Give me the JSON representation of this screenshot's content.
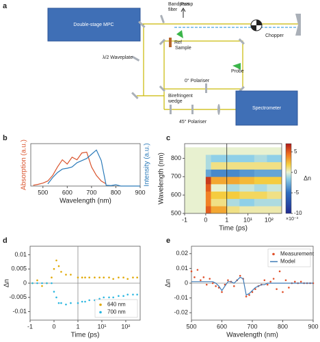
{
  "figure": {
    "panel_labels": [
      "a",
      "b",
      "c",
      "d",
      "e"
    ]
  },
  "diagram": {
    "mpc": "Double-stage MPC",
    "bandpass": [
      "Bandpass",
      "filter"
    ],
    "pump": "Pump",
    "chopper": "Chopper",
    "ref": "Ref",
    "sample": "Sample",
    "waveplate": "λ/2 Waveplate",
    "polariser0": "0° Polariser",
    "probe": "Probe",
    "wedge": [
      "Birefringent",
      "wedge"
    ],
    "polariser45": "45° Polariser",
    "spectrometer": "Spectrometer"
  },
  "chart_data": [
    {
      "type": "line",
      "xlabel": "Wavelength (nm)",
      "ylabel": "Absorption (a.u.)",
      "y2label": "Intensity (a.u.)",
      "x": [
        460,
        480,
        500,
        520,
        540,
        560,
        580,
        600,
        620,
        640,
        660,
        680,
        700,
        720,
        740,
        760,
        780,
        800,
        820,
        840,
        860,
        880,
        900
      ],
      "xlim": [
        450,
        900
      ],
      "xticks": [
        500,
        600,
        700,
        800,
        900
      ],
      "ylim": [
        0,
        1
      ],
      "y2lim": [
        0,
        1
      ],
      "series": [
        {
          "name": "Absorption",
          "color": "#d9532c",
          "values": [
            0.02,
            0.04,
            0.07,
            0.12,
            0.25,
            0.45,
            0.62,
            0.52,
            0.68,
            0.62,
            0.78,
            0.8,
            0.45,
            0.25,
            0.12,
            0.05,
            null,
            null,
            null,
            null,
            null,
            null,
            null
          ]
        },
        {
          "name": "Intensity",
          "color": "#2a7ab9",
          "axis": "y2",
          "values": [
            null,
            null,
            null,
            0.05,
            0.2,
            0.32,
            0.4,
            0.42,
            0.45,
            0.55,
            0.6,
            0.65,
            0.75,
            0.85,
            0.6,
            0.02,
            0.01,
            0.03,
            0,
            0,
            0,
            0,
            0
          ]
        }
      ]
    },
    {
      "type": "heatmap",
      "xlabel": "Time (ps)",
      "ylabel": "Wavelength (nm)",
      "xscale": "symlog",
      "xlim": [
        -1,
        400
      ],
      "xticks": [
        -1,
        0,
        1,
        {
          "value": 10,
          "label": "10¹"
        },
        {
          "value": 100,
          "label": "10²"
        }
      ],
      "ylim": [
        500,
        880
      ],
      "yticks": [
        500,
        600,
        700,
        800
      ],
      "x_edges": [
        -1,
        -0.5,
        0,
        0.25,
        1,
        4,
        20,
        80,
        400
      ],
      "y_edges": [
        500,
        540,
        580,
        620,
        660,
        700,
        740,
        780,
        820,
        860
      ],
      "z": [
        [
          0,
          0,
          5,
          3,
          1,
          0.5,
          0.5,
          0.5
        ],
        [
          0,
          0,
          4,
          1,
          -1,
          -1.5,
          -1,
          -1
        ],
        [
          0,
          0,
          4,
          2,
          2,
          1.5,
          1.5,
          1
        ],
        [
          0,
          0,
          5,
          0,
          -1,
          -0.5,
          -1,
          -0.5
        ],
        [
          0,
          0,
          6,
          3,
          3,
          2.5,
          2,
          2
        ],
        [
          0,
          0,
          -3,
          -4,
          -4,
          -3.5,
          -3,
          -3
        ],
        [
          0,
          0,
          -1,
          1,
          1,
          1,
          1,
          1
        ],
        [
          0,
          0,
          -1,
          -1.5,
          -1.5,
          -1.5,
          -1,
          -1.5
        ],
        [
          0,
          0,
          0,
          0,
          0,
          0,
          0,
          0
        ]
      ],
      "zlim": [
        -10,
        7
      ],
      "zticks": [
        5,
        0,
        -5,
        -10
      ],
      "colormap": "jet",
      "colorbar_label": "Δn",
      "colorbar_scale_label": "×10⁻³",
      "vline": 1
    },
    {
      "type": "scatter",
      "xlabel": "Time (ps)",
      "ylabel": "Δn",
      "xscale": "symlog",
      "xlim": [
        -1,
        400
      ],
      "xticks": [
        -1,
        0,
        1,
        {
          "value": 10,
          "label": "10¹"
        },
        {
          "value": 100,
          "label": "10²"
        }
      ],
      "ylim": [
        -0.013,
        0.013
      ],
      "yticks": [
        0.01,
        0.005,
        0,
        -0.005,
        -0.01
      ],
      "vline": 1,
      "hline": 0,
      "legend": "bottom-right",
      "x": [
        -0.9,
        -0.7,
        -0.5,
        -0.3,
        -0.1,
        0,
        0.1,
        0.2,
        0.3,
        0.5,
        0.7,
        1,
        1.5,
        2,
        3,
        5,
        8,
        12,
        20,
        30,
        50,
        80,
        120,
        200,
        300
      ],
      "series": [
        {
          "name": "640 nm",
          "color": "#e0a800",
          "type": "scatter",
          "values": [
            0,
            0.001,
            -0.001,
            0,
            0.002,
            0.005,
            0.008,
            0.006,
            0.004,
            0.003,
            0.003,
            0.002,
            0.002,
            0.002,
            0.002,
            0.002,
            0.002,
            0.002,
            0.002,
            0.0015,
            0.002,
            0.002,
            0.0015,
            0.002,
            0.002
          ]
        },
        {
          "name": "700 nm",
          "color": "#29b6e0",
          "type": "scatter",
          "values": [
            0,
            0,
            0,
            0,
            0,
            -0.003,
            -0.005,
            -0.007,
            -0.007,
            -0.0075,
            -0.007,
            -0.007,
            -0.0065,
            -0.0065,
            -0.006,
            -0.006,
            -0.0055,
            -0.005,
            -0.005,
            -0.005,
            -0.0045,
            -0.0045,
            -0.004,
            -0.004,
            -0.004
          ]
        }
      ]
    },
    {
      "type": "line",
      "xlabel": "Wavelength (nm)",
      "ylabel": "Δn",
      "xlim": [
        500,
        900
      ],
      "xticks": [
        500,
        600,
        700,
        800,
        900
      ],
      "ylim": [
        -0.025,
        0.025
      ],
      "yticks": [
        0.02,
        0.01,
        0,
        -0.01,
        -0.02
      ],
      "hline": 0,
      "legend": "top-right",
      "x": [
        500,
        510,
        520,
        530,
        540,
        550,
        560,
        570,
        580,
        590,
        600,
        610,
        620,
        630,
        640,
        650,
        660,
        670,
        680,
        690,
        700,
        710,
        720,
        730,
        740,
        750,
        760,
        770,
        780,
        790,
        800,
        810,
        820,
        830,
        840,
        850,
        860,
        870,
        880,
        890,
        900
      ],
      "series": [
        {
          "name": "Measurement",
          "color": "#e0502a",
          "type": "scatter",
          "values": [
            0.008,
            0.004,
            0.009,
            0.002,
            0.004,
            -0.001,
            0.003,
            0,
            -0.002,
            -0.003,
            -0.006,
            -0.001,
            0.002,
            0.001,
            -0.002,
            0.002,
            0.005,
            0.003,
            -0.009,
            -0.008,
            -0.006,
            -0.004,
            -0.002,
            -0.001,
            0.002,
            -0.001,
            0.001,
            0.003,
            -0.004,
            0.008,
            -0.006,
            0.002,
            -0.003,
            0,
            0.001,
            0,
            0.001,
            0,
            0,
            0,
            0
          ]
        },
        {
          "name": "Model",
          "color": "#3a78b5",
          "type": "line",
          "values": [
            0.001,
            0.001,
            0.001,
            0.001,
            0.001,
            0.001,
            0.001,
            0.001,
            0,
            -0.002,
            -0.005,
            -0.002,
            0.001,
            0.001,
            0,
            0.002,
            0.004,
            0.003,
            -0.008,
            -0.007,
            -0.005,
            -0.003,
            -0.002,
            -0.001,
            -0.001,
            0,
            0,
            0,
            0,
            0,
            0,
            0,
            0,
            0,
            0,
            0,
            0,
            0,
            0,
            0,
            0
          ]
        }
      ]
    }
  ]
}
